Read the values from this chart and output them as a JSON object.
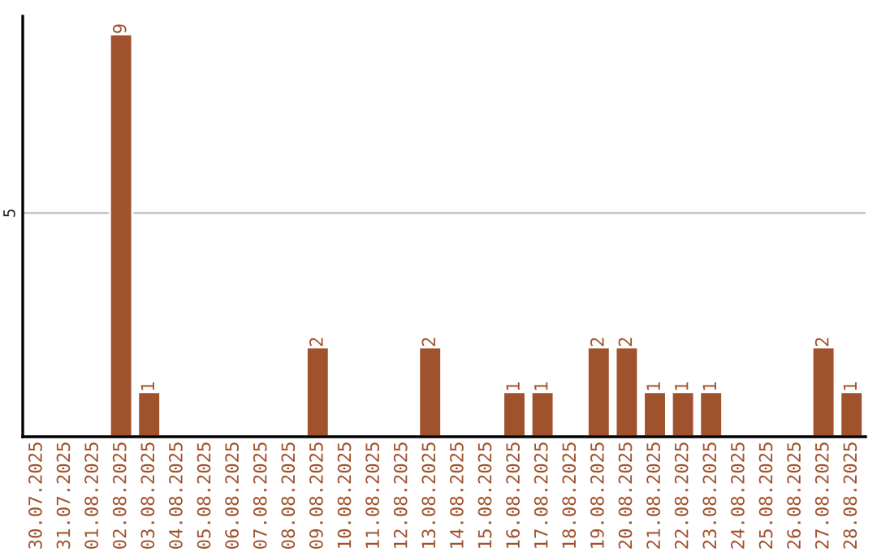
{
  "chart_data": {
    "type": "bar",
    "categories": [
      "30.07.2025",
      "31.07.2025",
      "01.08.2025",
      "02.08.2025",
      "03.08.2025",
      "04.08.2025",
      "05.08.2025",
      "06.08.2025",
      "07.08.2025",
      "08.08.2025",
      "09.08.2025",
      "10.08.2025",
      "11.08.2025",
      "12.08.2025",
      "13.08.2025",
      "14.08.2025",
      "15.08.2025",
      "16.08.2025",
      "17.08.2025",
      "18.08.2025",
      "19.08.2025",
      "20.08.2025",
      "21.08.2025",
      "22.08.2025",
      "23.08.2025",
      "24.08.2025",
      "25.08.2025",
      "26.08.2025",
      "27.08.2025",
      "28.08.2025"
    ],
    "values": [
      0,
      0,
      0,
      9,
      1,
      0,
      0,
      0,
      0,
      0,
      2,
      0,
      0,
      0,
      2,
      0,
      0,
      1,
      1,
      0,
      2,
      2,
      1,
      1,
      1,
      0,
      0,
      0,
      2,
      1
    ],
    "value_labels": [
      null,
      null,
      null,
      "9",
      "1",
      null,
      null,
      null,
      null,
      null,
      "2",
      null,
      null,
      null,
      "2",
      null,
      null,
      "1",
      "1",
      null,
      "2",
      "2",
      "1",
      "1",
      "1",
      null,
      null,
      null,
      "2",
      "1"
    ],
    "color": "#a0522d",
    "ylim": [
      0,
      9.4
    ],
    "yticks": [
      5
    ],
    "grid": "y",
    "legend": false
  }
}
